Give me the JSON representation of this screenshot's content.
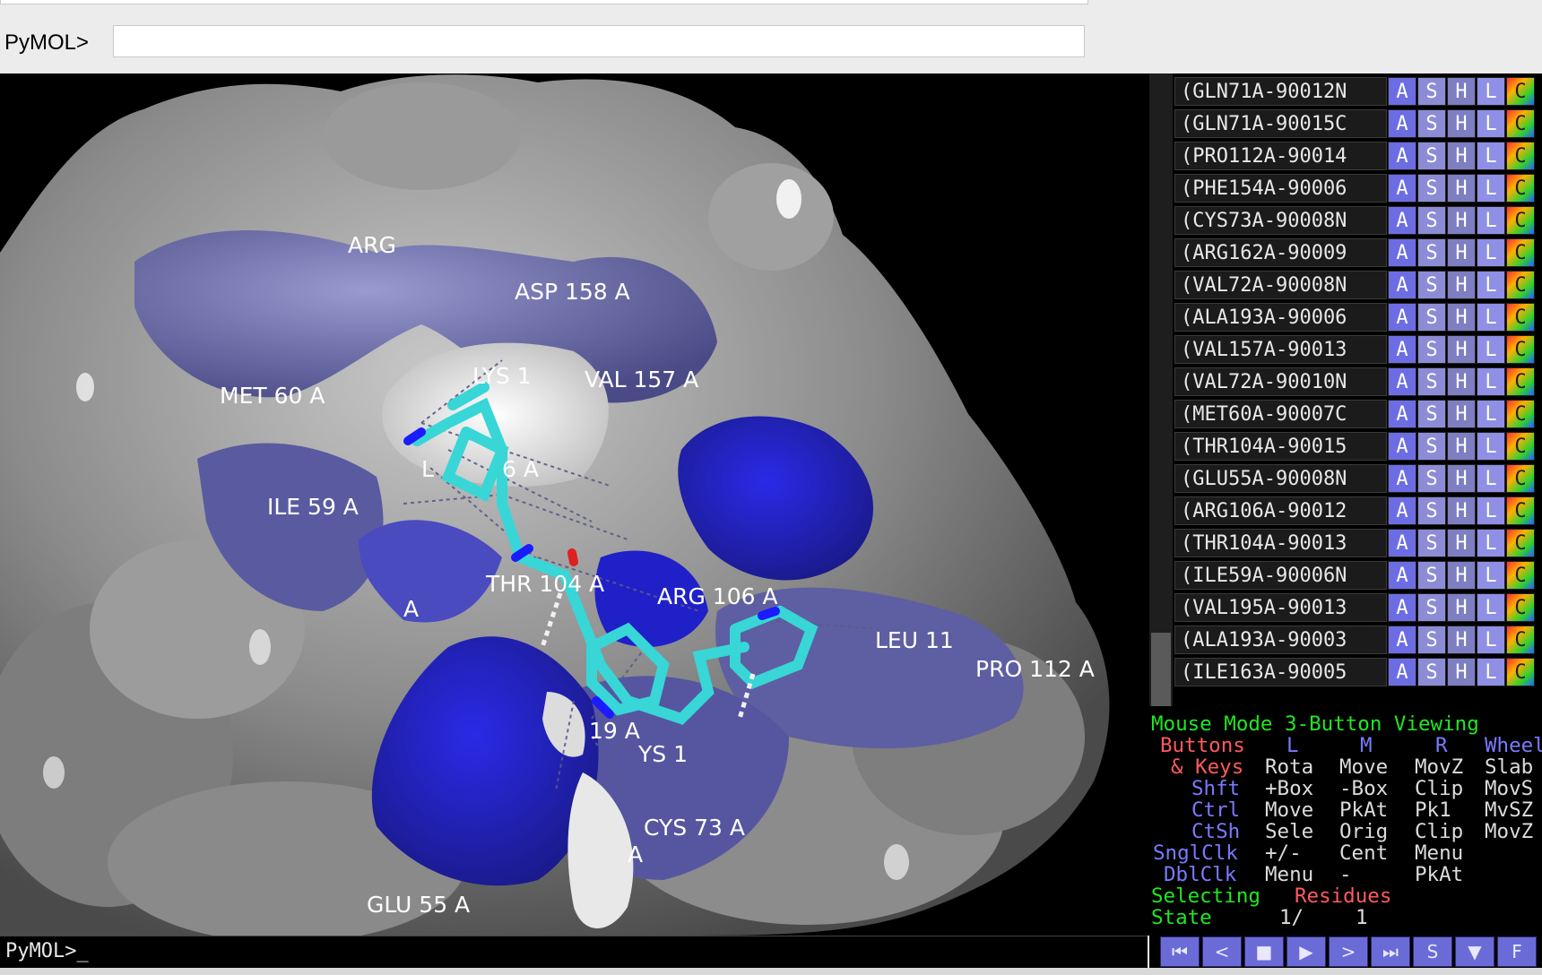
{
  "command_bar": {
    "prompt_label": "PyMOL>",
    "input_value": ""
  },
  "viewport": {
    "residue_labels": [
      {
        "text": "ARG"
      },
      {
        "text": "ASP 158 A"
      },
      {
        "text": "MET 60 A"
      },
      {
        "text": "LYS 1"
      },
      {
        "text": "VAL 157 A"
      },
      {
        "text": "L"
      },
      {
        "text": "6 A"
      },
      {
        "text": "ILE 59 A"
      },
      {
        "text": "THR 104 A"
      },
      {
        "text": "ARG 106 A"
      },
      {
        "text": "A"
      },
      {
        "text": "LEU 11"
      },
      {
        "text": "PRO 112 A"
      },
      {
        "text": "19 A"
      },
      {
        "text": "YS 1"
      },
      {
        "text": "CYS 73 A"
      },
      {
        "text": "A"
      },
      {
        "text": "GLU 55 A"
      }
    ]
  },
  "object_panel": {
    "buttons": [
      "A",
      "S",
      "H",
      "L",
      "C"
    ],
    "objects": [
      "(GLN71A-90012N",
      "(GLN71A-90015C",
      "(PRO112A-90014",
      "(PHE154A-90006",
      "(CYS73A-90008N",
      "(ARG162A-90009",
      "(VAL72A-90008N",
      "(ALA193A-90006",
      "(VAL157A-90013",
      "(VAL72A-90010N",
      "(MET60A-90007C",
      "(THR104A-90015",
      "(GLU55A-90008N",
      "(ARG106A-90012",
      "(THR104A-90013",
      "(ILE59A-90006N",
      "(VAL195A-90013",
      "(ALA193A-90003",
      "(ILE163A-90005"
    ]
  },
  "mouse_panel": {
    "title": "Mouse Mode 3-Button Viewing",
    "buttons_label": "Buttons",
    "col_l": "L",
    "col_m": "M",
    "col_r": "R",
    "col_wheel": "Wheel",
    "rows": [
      {
        "key": "& Keys",
        "l": "Rota",
        "m": "Move",
        "r": "MovZ",
        "w": "Slab"
      },
      {
        "key": "Shft",
        "l": "+Box",
        "m": "-Box",
        "r": "Clip",
        "w": "MovS"
      },
      {
        "key": "Ctrl",
        "l": "Move",
        "m": "PkAt",
        "r": "Pk1",
        "w": "MvSZ"
      },
      {
        "key": "CtSh",
        "l": "Sele",
        "m": "Orig",
        "r": "Clip",
        "w": "MovZ"
      },
      {
        "key": "SnglClk",
        "l": "+/-",
        "m": "Cent",
        "r": "Menu",
        "w": ""
      },
      {
        "key": "DblClk",
        "l": "Menu",
        "m": "-",
        "r": "PkAt",
        "w": ""
      }
    ],
    "selecting_label": "Selecting",
    "selecting_value": "Residues",
    "state_label": "State",
    "state_value": "1/",
    "state_total": "1"
  },
  "movie_controls": {
    "buttons": [
      {
        "icon": "rewind-icon",
        "glyph": "⏮"
      },
      {
        "icon": "step-back-icon",
        "glyph": "<"
      },
      {
        "icon": "stop-icon",
        "glyph": "■"
      },
      {
        "icon": "play-icon",
        "glyph": "▶"
      },
      {
        "icon": "step-forward-icon",
        "glyph": ">"
      },
      {
        "icon": "fast-forward-icon",
        "glyph": "⏭"
      },
      {
        "icon": "sculpt-icon",
        "glyph": "S"
      },
      {
        "icon": "dropdown-icon",
        "glyph": "▼"
      },
      {
        "icon": "fullscreen-icon",
        "glyph": "F"
      }
    ]
  },
  "bottom_command": {
    "text": "PyMOL>_"
  },
  "colors": {
    "surface_gray": "#8a8a8a",
    "surface_blue": "#3a3acb",
    "surface_slate": "#6a6aa8",
    "ligand_carbon": "#38d6d6",
    "nitrogen": "#2020ff",
    "oxygen": "#e02020"
  }
}
